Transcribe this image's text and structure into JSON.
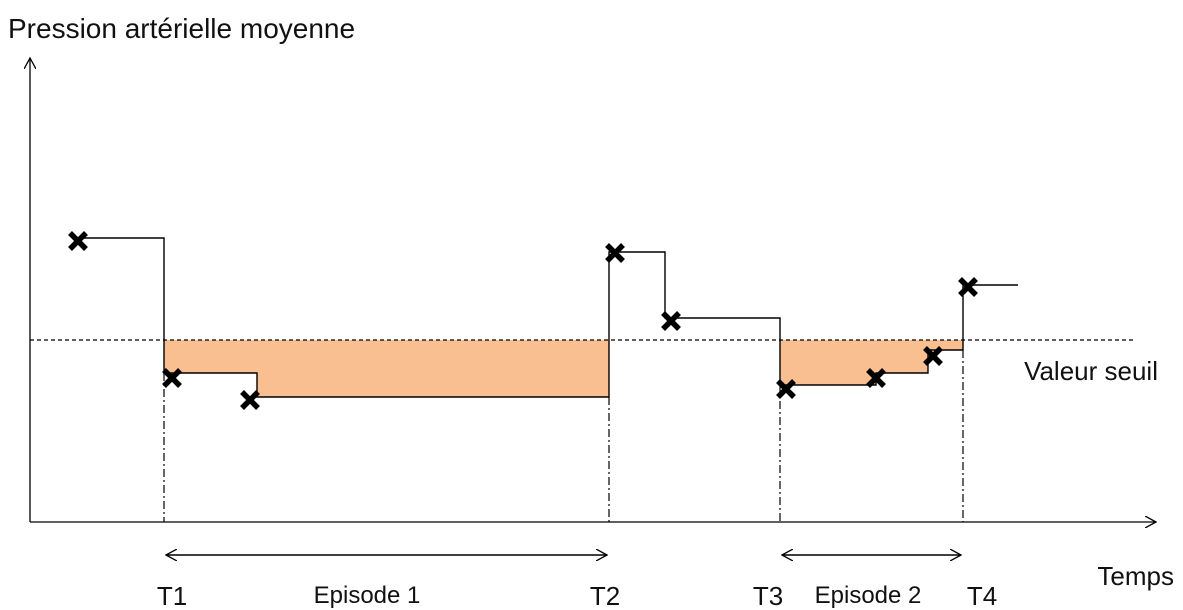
{
  "y_axis_label": "Pression artérielle moyenne",
  "x_axis_label": "Temps",
  "threshold_label": "Valeur seuil",
  "time_markers": [
    "T1",
    "T2",
    "T3",
    "T4"
  ],
  "episodes": [
    "Episode 1",
    "Episode 2"
  ]
}
